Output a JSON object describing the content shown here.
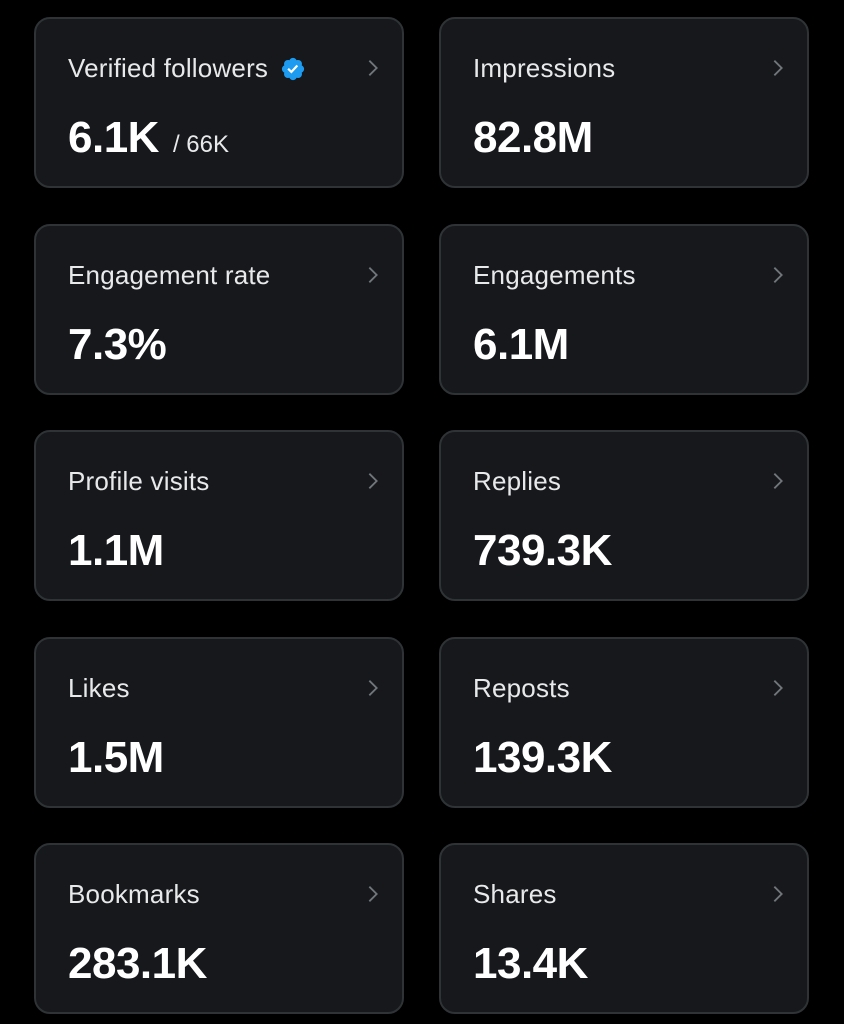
{
  "colors": {
    "background": "#000000",
    "card_background": "#16181c",
    "card_border": "#2f3336",
    "text": "#e7e9ea",
    "verified_badge": "#1d9bf0"
  },
  "cards": [
    {
      "label": "Verified followers",
      "value": "6.1K",
      "subvalue": "/ 66K",
      "badge_icon": "verified-badge-icon",
      "chevron_icon": "chevron-right-icon"
    },
    {
      "label": "Impressions",
      "value": "82.8M",
      "chevron_icon": "chevron-right-icon"
    },
    {
      "label": "Engagement rate",
      "value": "7.3%",
      "chevron_icon": "chevron-right-icon"
    },
    {
      "label": "Engagements",
      "value": "6.1M",
      "chevron_icon": "chevron-right-icon"
    },
    {
      "label": "Profile visits",
      "value": "1.1M",
      "chevron_icon": "chevron-right-icon"
    },
    {
      "label": "Replies",
      "value": "739.3K",
      "chevron_icon": "chevron-right-icon"
    },
    {
      "label": "Likes",
      "value": "1.5M",
      "chevron_icon": "chevron-right-icon"
    },
    {
      "label": "Reposts",
      "value": "139.3K",
      "chevron_icon": "chevron-right-icon"
    },
    {
      "label": "Bookmarks",
      "value": "283.1K",
      "chevron_icon": "chevron-right-icon"
    },
    {
      "label": "Shares",
      "value": "13.4K",
      "chevron_icon": "chevron-right-icon"
    }
  ]
}
